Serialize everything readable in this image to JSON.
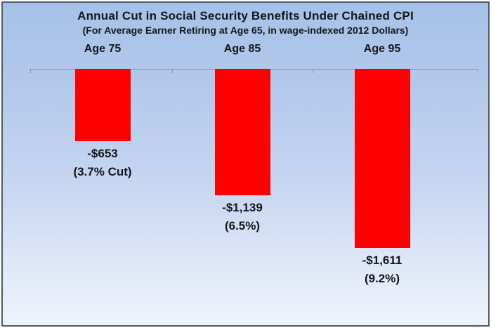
{
  "frame": {
    "border_color": "#4E5B6C",
    "background_top_color": "#A6C1E8",
    "background_bottom_color": "#EFF3FB"
  },
  "chart_data": {
    "type": "bar",
    "title": "Annual Cut in Social Security Benefits Under Chained CPI",
    "subtitle": "(For Average Earner Retiring at Age 65, in wage-indexed 2012 Dollars)",
    "categories": [
      "Age 75",
      "Age 85",
      "Age 95"
    ],
    "values": [
      -653,
      -1139,
      -1611
    ],
    "value_labels": [
      "-$653",
      "-$1,139",
      "-$1,611"
    ],
    "percent_labels": [
      "(3.7% Cut)",
      "(6.5%)",
      "(9.2%)"
    ],
    "ylim": [
      -1700,
      0
    ],
    "orientation": "vertical-down-from-baseline",
    "grid": false,
    "legend": "none",
    "bar_color": "#FE0000",
    "axis_color": "#8A94A4",
    "text_color": "#14161C"
  }
}
